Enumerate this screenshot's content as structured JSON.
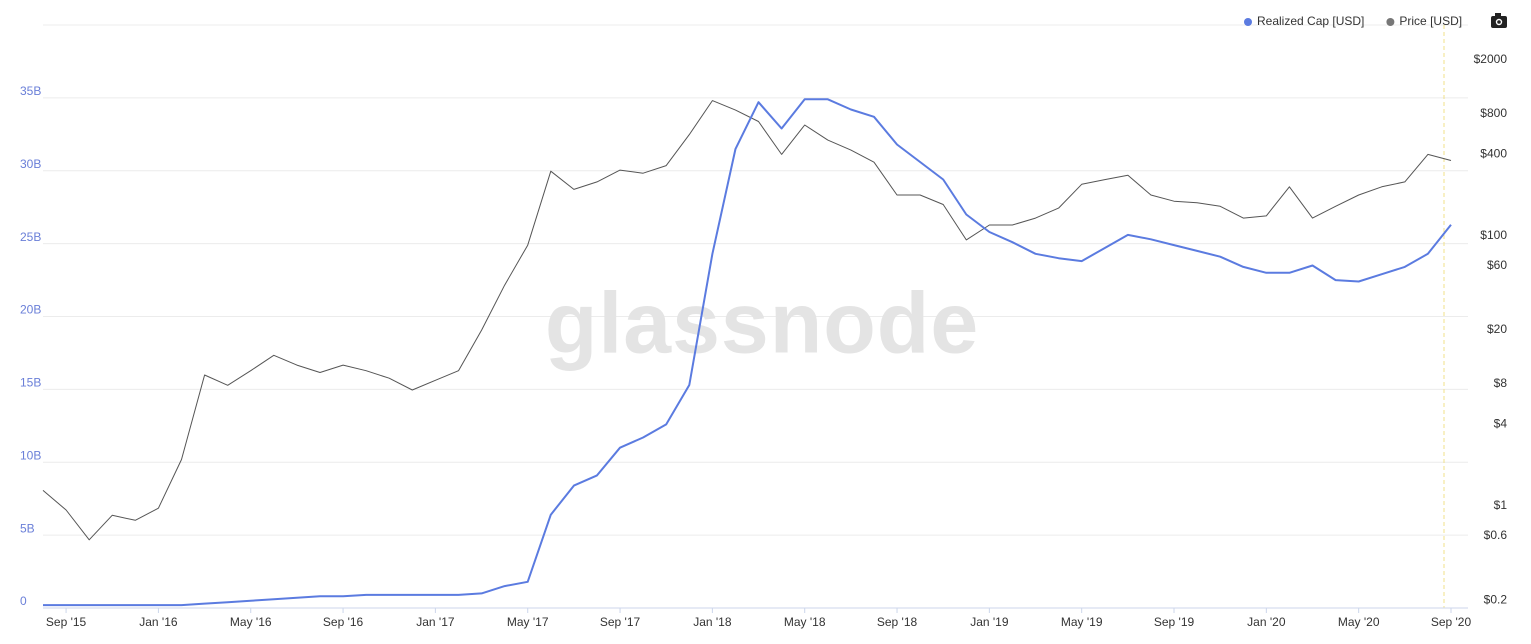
{
  "chart_data": {
    "type": "line",
    "watermark": "glassnode",
    "x": [
      "2015-08",
      "2015-09",
      "2015-10",
      "2015-11",
      "2015-12",
      "2016-01",
      "2016-02",
      "2016-03",
      "2016-04",
      "2016-05",
      "2016-06",
      "2016-07",
      "2016-08",
      "2016-09",
      "2016-10",
      "2016-11",
      "2016-12",
      "2017-01",
      "2017-02",
      "2017-03",
      "2017-04",
      "2017-05",
      "2017-06",
      "2017-07",
      "2017-08",
      "2017-09",
      "2017-10",
      "2017-11",
      "2017-12",
      "2018-01",
      "2018-02",
      "2018-03",
      "2018-04",
      "2018-05",
      "2018-06",
      "2018-07",
      "2018-08",
      "2018-09",
      "2018-10",
      "2018-11",
      "2018-12",
      "2019-01",
      "2019-02",
      "2019-03",
      "2019-04",
      "2019-05",
      "2019-06",
      "2019-07",
      "2019-08",
      "2019-09",
      "2019-10",
      "2019-11",
      "2019-12",
      "2020-01",
      "2020-02",
      "2020-03",
      "2020-04",
      "2020-05",
      "2020-06",
      "2020-07",
      "2020-08",
      "2020-09"
    ],
    "series": [
      {
        "name": "Realized Cap [USD]",
        "color": "#5b7be0",
        "values": [
          0.2,
          0.2,
          0.2,
          0.2,
          0.2,
          0.2,
          0.2,
          0.3,
          0.4,
          0.5,
          0.6,
          0.7,
          0.8,
          0.8,
          0.9,
          0.9,
          0.9,
          0.9,
          0.9,
          1.0,
          1.5,
          1.8,
          6.4,
          8.4,
          9.1,
          11.0,
          11.7,
          12.6,
          15.3,
          24.3,
          31.5,
          34.7,
          32.9,
          34.9,
          34.9,
          34.2,
          33.7,
          31.8,
          30.6,
          29.4,
          27.0,
          25.8,
          25.1,
          24.3,
          24.0,
          23.8,
          24.7,
          25.6,
          25.3,
          24.9,
          24.5,
          24.1,
          23.4,
          23.0,
          23.0,
          23.5,
          22.5,
          22.4,
          22.9,
          23.4,
          24.3,
          26.3
        ]
      },
      {
        "name": "Price [USD]",
        "color": "#555555",
        "axis": "y2",
        "values": [
          1.3,
          0.93,
          0.56,
          0.85,
          0.78,
          0.96,
          2.2,
          9.3,
          7.8,
          10,
          13,
          11,
          9.7,
          11,
          10,
          8.8,
          7.2,
          8.5,
          10,
          20,
          43,
          85,
          300,
          220,
          250,
          306,
          290,
          330,
          560,
          1000,
          850,
          700,
          400,
          660,
          510,
          430,
          350,
          200,
          200,
          170,
          93,
          120,
          120,
          135,
          160,
          240,
          260,
          280,
          200,
          180,
          175,
          165,
          135,
          140,
          230,
          135,
          165,
          200,
          230,
          250,
          400,
          360
        ]
      }
    ],
    "xlim": [
      "2015-08",
      "2020-09"
    ],
    "xticks": [
      {
        "value": "2015-09",
        "label": "Sep '15"
      },
      {
        "value": "2016-01",
        "label": "Jan '16"
      },
      {
        "value": "2016-05",
        "label": "May '16"
      },
      {
        "value": "2016-09",
        "label": "Sep '16"
      },
      {
        "value": "2017-01",
        "label": "Jan '17"
      },
      {
        "value": "2017-05",
        "label": "May '17"
      },
      {
        "value": "2017-09",
        "label": "Sep '17"
      },
      {
        "value": "2018-01",
        "label": "Jan '18"
      },
      {
        "value": "2018-05",
        "label": "May '18"
      },
      {
        "value": "2018-09",
        "label": "Sep '18"
      },
      {
        "value": "2019-01",
        "label": "Jan '19"
      },
      {
        "value": "2019-05",
        "label": "May '19"
      },
      {
        "value": "2019-09",
        "label": "Sep '19"
      },
      {
        "value": "2020-01",
        "label": "Jan '20"
      },
      {
        "value": "2020-05",
        "label": "May '20"
      },
      {
        "value": "2020-09",
        "label": "Sep '20"
      }
    ],
    "ylim": [
      0,
      40
    ],
    "yticks": [
      0,
      {
        "value": 5,
        "label": "5B"
      },
      {
        "value": 10,
        "label": "10B"
      },
      {
        "value": 15,
        "label": "15B"
      },
      {
        "value": 20,
        "label": "20B"
      },
      {
        "value": 25,
        "label": "25B"
      },
      {
        "value": 30,
        "label": "30B"
      },
      {
        "value": 35,
        "label": "35B"
      }
    ],
    "y2lim": [
      0.175,
      3630
    ],
    "y2log": true,
    "y2ticks": [
      {
        "value": 2000,
        "label": "$2000"
      },
      {
        "value": 800,
        "label": "$800"
      },
      {
        "value": 400,
        "label": "$400"
      },
      {
        "value": 100,
        "label": "$100"
      },
      {
        "value": 60,
        "label": "$60"
      },
      {
        "value": 20,
        "label": "$20"
      },
      {
        "value": 8,
        "label": "$8"
      },
      {
        "value": 4,
        "label": "$4"
      },
      {
        "value": 1,
        "label": "$1"
      },
      {
        "value": 0.6,
        "label": "$0.6"
      },
      {
        "value": 0.2,
        "label": "$0.2"
      }
    ],
    "grid": true,
    "legend": "top-right"
  }
}
